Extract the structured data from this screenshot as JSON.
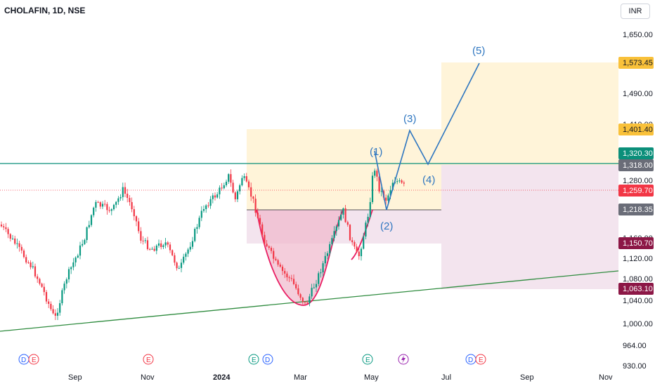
{
  "header": {
    "symbol": "CHOLAFIN, 1D, NSE",
    "currency": "INR"
  },
  "chart_data": {
    "type": "candlestick",
    "y_axis": {
      "ticks": [
        "1,650.00",
        "1,490.00",
        "1,410.00",
        "1,280.00",
        "1,160.00",
        "1,120.00",
        "1,080.00",
        "1,040.00",
        "1,000.00",
        "964.00",
        "930.00"
      ]
    },
    "x_axis": {
      "ticks": [
        "Sep",
        "Nov",
        "2024",
        "Mar",
        "May",
        "Jul",
        "Sep",
        "Nov"
      ]
    },
    "price_tags": [
      {
        "label": "1,573.45",
        "value": 1573.45,
        "bg": "#f9c13a",
        "fg": "#131722"
      },
      {
        "label": "1,401.40",
        "value": 1401.4,
        "bg": "#f9c13a",
        "fg": "#131722"
      },
      {
        "label": "1,320.30",
        "value": 1320.3,
        "bg": "#0b8f7a",
        "fg": "#ffffff"
      },
      {
        "label": "1,318.00",
        "value": 1318.0,
        "bg": "#6a6d78",
        "fg": "#ffffff"
      },
      {
        "label": "1,259.70",
        "value": 1259.7,
        "bg": "#f23645",
        "fg": "#ffffff"
      },
      {
        "label": "1,218.35",
        "value": 1218.35,
        "bg": "#6a6d78",
        "fg": "#ffffff"
      },
      {
        "label": "1,150.70",
        "value": 1150.7,
        "bg": "#8c1746",
        "fg": "#ffffff"
      },
      {
        "label": "1,063.10",
        "value": 1063.1,
        "bg": "#8c1746",
        "fg": "#ffffff"
      }
    ],
    "wave_labels": [
      "(1)",
      "(2)",
      "(3)",
      "(4)",
      "(5)"
    ],
    "wave_points": [
      {
        "label": "(1)",
        "value": 1330
      },
      {
        "label": "(2)",
        "value": 1218
      },
      {
        "label": "(3)",
        "value": 1410
      },
      {
        "label": "(4)",
        "value": 1318
      },
      {
        "label": "(5)",
        "value": 1580
      }
    ],
    "event_markers": [
      {
        "type": "D",
        "color": "#2962ff"
      },
      {
        "type": "E",
        "color": "#f23645"
      },
      {
        "type": "E",
        "color": "#f23645"
      },
      {
        "type": "E",
        "color": "#089981"
      },
      {
        "type": "D",
        "color": "#2962ff"
      },
      {
        "type": "E",
        "color": "#089981"
      },
      {
        "type": "flash",
        "color": "#9c27b0"
      },
      {
        "type": "D",
        "color": "#2962ff"
      },
      {
        "type": "E",
        "color": "#f23645"
      }
    ],
    "colors": {
      "up": "#089981",
      "down": "#f23645",
      "wave": "#2e76c0",
      "trend": "#2e8b3e",
      "resistance": "#0b8f7a",
      "cup": "#e91e63"
    }
  }
}
